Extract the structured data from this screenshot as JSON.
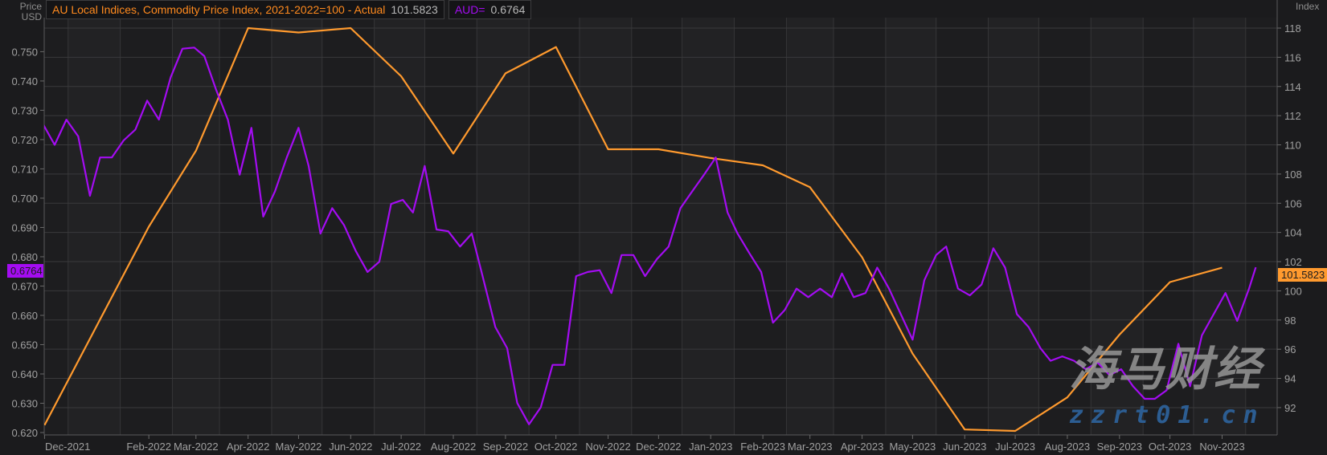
{
  "axis_titles": {
    "left_line1": "Price",
    "left_line2": "USD",
    "right": "Index"
  },
  "legend": [
    {
      "label": "AU Local Indices, Commodity Price Index, 2021-2022=100 - Actual",
      "value": "101.5823",
      "color": "#ff9a2e"
    },
    {
      "label": "AUD=",
      "value": "0.6764",
      "color": "#a40cf2"
    }
  ],
  "last_value_markers": {
    "left": "0.6764",
    "right": "101.5823"
  },
  "watermark": {
    "text": "海马财经",
    "url": "zzrt01.cn"
  },
  "chart_data": {
    "type": "line",
    "grid": true,
    "legend_placement": "top-left",
    "x_axis": {
      "type": "date",
      "range": [
        "2021-11-30",
        "2023-12-12"
      ],
      "tick_labels": [
        {
          "date": "2021-12-01",
          "label": "Dec-2021"
        },
        {
          "date": "2022-02-01",
          "label": "Feb-2022"
        },
        {
          "date": "2022-03-01",
          "label": "Mar-2022"
        },
        {
          "date": "2022-04-01",
          "label": "Apr-2022"
        },
        {
          "date": "2022-05-01",
          "label": "May-2022"
        },
        {
          "date": "2022-06-01",
          "label": "Jun-2022"
        },
        {
          "date": "2022-07-01",
          "label": "Jul-2022"
        },
        {
          "date": "2022-08-01",
          "label": "Aug-2022"
        },
        {
          "date": "2022-09-01",
          "label": "Sep-2022"
        },
        {
          "date": "2022-10-01",
          "label": "Oct-2022"
        },
        {
          "date": "2022-11-01",
          "label": "Nov-2022"
        },
        {
          "date": "2022-12-01",
          "label": "Dec-2022"
        },
        {
          "date": "2023-01-01",
          "label": "Jan-2023"
        },
        {
          "date": "2023-02-01",
          "label": "Feb-2023"
        },
        {
          "date": "2023-03-01",
          "label": "Mar-2023"
        },
        {
          "date": "2023-04-01",
          "label": "Apr-2023"
        },
        {
          "date": "2023-05-01",
          "label": "May-2023"
        },
        {
          "date": "2023-06-01",
          "label": "Jun-2023"
        },
        {
          "date": "2023-07-01",
          "label": "Jul-2023"
        },
        {
          "date": "2023-08-01",
          "label": "Aug-2023"
        },
        {
          "date": "2023-09-01",
          "label": "Sep-2023"
        },
        {
          "date": "2023-10-01",
          "label": "Oct-2023"
        },
        {
          "date": "2023-11-01",
          "label": "Nov-2023"
        }
      ]
    },
    "left_axis": {
      "label": "Price USD",
      "range": [
        0.6192,
        0.7615
      ],
      "ticks": [
        "0.620",
        "0.630",
        "0.640",
        "0.650",
        "0.660",
        "0.670",
        "0.680",
        "0.690",
        "0.700",
        "0.710",
        "0.720",
        "0.730",
        "0.740",
        "0.750"
      ]
    },
    "right_axis": {
      "label": "Index",
      "range": [
        89.7,
        118.9
      ],
      "ticks": [
        "92",
        "94",
        "96",
        "98",
        "100",
        "102",
        "104",
        "106",
        "108",
        "110",
        "112",
        "114",
        "116",
        "118"
      ]
    },
    "series": [
      {
        "name": "AU Local Indices, Commodity Price Index, 2021-2022=100 - Actual",
        "axis": "right",
        "color": "#ff9a2e",
        "x": [
          "2021-12-01",
          "2022-01-01",
          "2022-02-01",
          "2022-03-01",
          "2022-04-01",
          "2022-05-01",
          "2022-06-01",
          "2022-07-01",
          "2022-08-01",
          "2022-09-01",
          "2022-10-01",
          "2022-11-01",
          "2022-12-01",
          "2023-01-01",
          "2023-02-01",
          "2023-03-01",
          "2023-04-01",
          "2023-05-01",
          "2023-06-01",
          "2023-07-01",
          "2023-08-01",
          "2023-09-01",
          "2023-10-01",
          "2023-11-01"
        ],
        "y": [
          90.8,
          97.6,
          104.4,
          109.6,
          118.0,
          117.7,
          118.0,
          114.7,
          109.4,
          114.9,
          116.7,
          109.7,
          109.7,
          109.1,
          108.6,
          107.1,
          102.3,
          95.7,
          90.5,
          90.4,
          92.7,
          97.0,
          100.6,
          101.5823
        ]
      },
      {
        "name": "AUD=",
        "axis": "left",
        "color": "#a40cf2",
        "x": [
          "2021-11-30",
          "2021-12-07",
          "2021-12-14",
          "2021-12-21",
          "2021-12-28",
          "2022-01-03",
          "2022-01-10",
          "2022-01-17",
          "2022-01-24",
          "2022-01-31",
          "2022-02-07",
          "2022-02-14",
          "2022-02-21",
          "2022-02-28",
          "2022-03-06",
          "2022-03-13",
          "2022-03-20",
          "2022-03-27",
          "2022-04-03",
          "2022-04-10",
          "2022-04-17",
          "2022-04-24",
          "2022-05-01",
          "2022-05-07",
          "2022-05-14",
          "2022-05-21",
          "2022-05-28",
          "2022-06-04",
          "2022-06-11",
          "2022-06-18",
          "2022-06-25",
          "2022-07-02",
          "2022-07-08",
          "2022-07-15",
          "2022-07-22",
          "2022-07-29",
          "2022-08-05",
          "2022-08-12",
          "2022-08-19",
          "2022-08-26",
          "2022-09-02",
          "2022-09-08",
          "2022-09-15",
          "2022-09-22",
          "2022-09-29",
          "2022-10-06",
          "2022-10-13",
          "2022-10-20",
          "2022-10-27",
          "2022-11-03",
          "2022-11-09",
          "2022-11-16",
          "2022-11-23",
          "2022-11-30",
          "2022-12-07",
          "2022-12-14",
          "2022-12-21",
          "2022-12-28",
          "2023-01-04",
          "2023-01-11",
          "2023-01-17",
          "2023-01-24",
          "2023-01-31",
          "2023-02-07",
          "2023-02-14",
          "2023-02-21",
          "2023-02-28",
          "2023-03-07",
          "2023-03-14",
          "2023-03-20",
          "2023-03-27",
          "2023-04-03",
          "2023-04-10",
          "2023-04-17",
          "2023-04-24",
          "2023-05-01",
          "2023-05-08",
          "2023-05-15",
          "2023-05-21",
          "2023-05-28",
          "2023-06-04",
          "2023-06-11",
          "2023-06-18",
          "2023-06-25",
          "2023-07-02",
          "2023-07-09",
          "2023-07-16",
          "2023-07-22",
          "2023-07-29",
          "2023-08-05",
          "2023-08-12",
          "2023-08-19",
          "2023-08-26",
          "2023-09-02",
          "2023-09-09",
          "2023-09-16",
          "2023-09-22",
          "2023-09-29",
          "2023-10-06",
          "2023-10-13",
          "2023-10-20",
          "2023-10-27",
          "2023-11-03",
          "2023-11-10",
          "2023-11-17",
          "2023-11-21"
        ],
        "y": [
          0.7254,
          0.7182,
          0.7268,
          0.7211,
          0.7008,
          0.7139,
          0.7139,
          0.7197,
          0.7234,
          0.7333,
          0.7268,
          0.7413,
          0.751,
          0.7514,
          0.7485,
          0.737,
          0.7268,
          0.708,
          0.724,
          0.6937,
          0.7023,
          0.7139,
          0.724,
          0.711,
          0.6879,
          0.6966,
          0.6908,
          0.682,
          0.6748,
          0.6783,
          0.698,
          0.6994,
          0.6951,
          0.711,
          0.6893,
          0.6887,
          0.6835,
          0.6879,
          0.672,
          0.656,
          0.6488,
          0.6301,
          0.6228,
          0.6286,
          0.6431,
          0.6431,
          0.6734,
          0.6748,
          0.6754,
          0.6676,
          0.6806,
          0.6806,
          0.6734,
          0.6792,
          0.6835,
          0.6966,
          0.7023,
          0.708,
          0.7139,
          0.6951,
          0.6879,
          0.6812,
          0.6748,
          0.6575,
          0.6618,
          0.6691,
          0.6662,
          0.6691,
          0.6662,
          0.6743,
          0.6662,
          0.6676,
          0.6763,
          0.6691,
          0.6604,
          0.6517,
          0.672,
          0.6806,
          0.6835,
          0.6691,
          0.6668,
          0.6705,
          0.6829,
          0.6763,
          0.6604,
          0.656,
          0.6488,
          0.6445,
          0.646,
          0.6445,
          0.6416,
          0.6439,
          0.6396,
          0.6416,
          0.6358,
          0.6315,
          0.6315,
          0.6344,
          0.6503,
          0.6358,
          0.6532,
          0.6604,
          0.6676,
          0.6581,
          0.6691,
          0.6764
        ]
      }
    ]
  }
}
